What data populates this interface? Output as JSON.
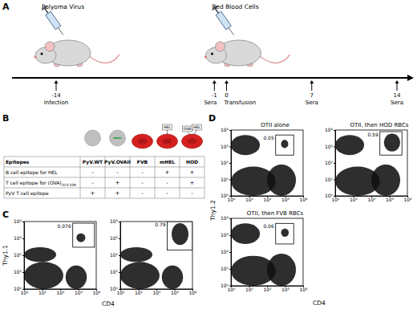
{
  "panel_labels": [
    "A",
    "B",
    "C",
    "D"
  ],
  "panel_a": {
    "injections": [
      "Polyoma Virus",
      "Red Blood Cells"
    ],
    "timeline": [
      {
        "day": -14,
        "label": "Infection"
      },
      {
        "day": -1,
        "label": "Sera"
      },
      {
        "day": 0,
        "label": "Transfusion"
      },
      {
        "day": 7,
        "label": "Sera"
      },
      {
        "day": 14,
        "label": "Sera"
      }
    ]
  },
  "panel_b": {
    "header": [
      "Epitopes",
      "PyV.WT",
      "PyV.OVAII",
      "FVB",
      "mHEL",
      "HOD"
    ],
    "tags": [
      [],
      [],
      [],
      [
        "HEL"
      ],
      [
        "OVA",
        "HEL"
      ]
    ],
    "rows": [
      {
        "label": "B cell epitope for HEL",
        "cells": [
          "-",
          "-",
          "-",
          "+",
          "+"
        ]
      },
      {
        "label": "T cell epitope for (OVA)",
        "sub": "323-339",
        "cells": [
          "-",
          "+",
          "-",
          "-",
          "+"
        ]
      },
      {
        "label": "PyV T cell epitope",
        "cells": [
          "+",
          "+",
          "-",
          "-",
          "-"
        ]
      }
    ]
  },
  "panel_c": {
    "x_label": "CD4",
    "y_label": "Thy1.1"
  },
  "panel_d": {
    "x_label": "CD4",
    "y_label": "Thy1.2"
  },
  "chart_data": [
    {
      "type": "scatter",
      "log": true,
      "xlim": [
        1,
        10000
      ],
      "ylim": [
        1,
        10000
      ],
      "xticks": [
        {
          "value": 1,
          "label": "10⁰"
        },
        {
          "value": 10,
          "label": "10¹"
        },
        {
          "value": 100,
          "label": "10²"
        },
        {
          "value": 1000,
          "label": "10³"
        },
        {
          "value": 10000,
          "label": "10⁴"
        }
      ],
      "yticks": [
        {
          "value": 1,
          "label": "10⁰"
        },
        {
          "value": 10,
          "label": "10¹"
        },
        {
          "value": 100,
          "label": "10²"
        },
        {
          "value": 1000,
          "label": "10³"
        },
        {
          "value": 10000,
          "label": "10⁴"
        }
      ],
      "populations": [
        {
          "x": [
            1,
            150
          ],
          "y": [
            1,
            40
          ]
        },
        {
          "x": [
            200,
            3000
          ],
          "y": [
            1,
            25
          ]
        },
        {
          "x": [
            1,
            60
          ],
          "y": [
            40,
            300
          ]
        },
        {
          "x": [
            800,
            2500
          ],
          "y": [
            600,
            2000
          ]
        }
      ],
      "gate": {
        "x": [
          500,
          8000
        ],
        "y": [
          300,
          8000
        ],
        "percent": 0.076
      }
    },
    {
      "type": "scatter",
      "log": true,
      "xlim": [
        1,
        10000
      ],
      "ylim": [
        1,
        10000
      ],
      "xticks": [
        {
          "value": 1,
          "label": "10⁰"
        },
        {
          "value": 10,
          "label": "10¹"
        },
        {
          "value": 100,
          "label": "10²"
        },
        {
          "value": 1000,
          "label": "10³"
        },
        {
          "value": 10000,
          "label": "10⁴"
        }
      ],
      "yticks": [
        {
          "value": 1,
          "label": "10⁰"
        },
        {
          "value": 10,
          "label": "10¹"
        },
        {
          "value": 100,
          "label": "10²"
        },
        {
          "value": 1000,
          "label": "10³"
        },
        {
          "value": 10000,
          "label": "10⁴"
        }
      ],
      "populations": [
        {
          "x": [
            1,
            150
          ],
          "y": [
            1,
            40
          ]
        },
        {
          "x": [
            200,
            3000
          ],
          "y": [
            1,
            25
          ]
        },
        {
          "x": [
            1,
            60
          ],
          "y": [
            40,
            300
          ]
        },
        {
          "x": [
            700,
            6000
          ],
          "y": [
            400,
            8000
          ]
        }
      ],
      "gate": {
        "x": [
          400,
          10000
        ],
        "y": [
          200,
          10000
        ],
        "percent": 0.79
      }
    },
    {
      "type": "scatter",
      "log": true,
      "title": "OTII alone",
      "xlim": [
        1,
        10000
      ],
      "ylim": [
        1,
        10000
      ],
      "xticks": [
        {
          "value": 1,
          "label": "10⁰"
        },
        {
          "value": 10,
          "label": "10¹"
        },
        {
          "value": 100,
          "label": "10²"
        },
        {
          "value": 1000,
          "label": "10³"
        },
        {
          "value": 10000,
          "label": "10⁴"
        }
      ],
      "yticks": [
        {
          "value": 1,
          "label": "10⁰"
        },
        {
          "value": 10,
          "label": "10¹"
        },
        {
          "value": 100,
          "label": "10²"
        },
        {
          "value": 1000,
          "label": "10³"
        },
        {
          "value": 10000,
          "label": "10⁴"
        }
      ],
      "populations": [
        {
          "x": [
            1,
            40
          ],
          "y": [
            300,
            5000
          ]
        },
        {
          "x": [
            1,
            300
          ],
          "y": [
            1,
            60
          ]
        },
        {
          "x": [
            100,
            4000
          ],
          "y": [
            1,
            80
          ]
        },
        {
          "x": [
            600,
            1500
          ],
          "y": [
            800,
            2500
          ]
        }
      ],
      "gate": {
        "x": [
          300,
          3000
        ],
        "y": [
          300,
          5000
        ],
        "percent": 0.05
      }
    },
    {
      "type": "scatter",
      "log": true,
      "title": "OTII, then HOD RBCs",
      "xlim": [
        1,
        10000
      ],
      "ylim": [
        1,
        10000
      ],
      "xticks": [
        {
          "value": 1,
          "label": "10⁰"
        },
        {
          "value": 10,
          "label": "10¹"
        },
        {
          "value": 100,
          "label": "10²"
        },
        {
          "value": 1000,
          "label": "10³"
        },
        {
          "value": 10000,
          "label": "10⁴"
        }
      ],
      "yticks": [
        {
          "value": 1,
          "label": "10⁰"
        },
        {
          "value": 10,
          "label": "10¹"
        },
        {
          "value": 100,
          "label": "10²"
        },
        {
          "value": 1000,
          "label": "10³"
        },
        {
          "value": 10000,
          "label": "10⁴"
        }
      ],
      "populations": [
        {
          "x": [
            1,
            40
          ],
          "y": [
            300,
            5000
          ]
        },
        {
          "x": [
            1,
            300
          ],
          "y": [
            1,
            60
          ]
        },
        {
          "x": [
            100,
            4000
          ],
          "y": [
            1,
            80
          ]
        },
        {
          "x": [
            500,
            4000
          ],
          "y": [
            500,
            6000
          ]
        }
      ],
      "gate": {
        "x": [
          300,
          5000
        ],
        "y": [
          300,
          8000
        ],
        "percent": 0.59
      }
    },
    {
      "type": "scatter",
      "log": true,
      "title": "OTII, then FVB RBCs",
      "xlim": [
        1,
        10000
      ],
      "ylim": [
        1,
        10000
      ],
      "xticks": [
        {
          "value": 1,
          "label": "10⁰"
        },
        {
          "value": 10,
          "label": "10¹"
        },
        {
          "value": 100,
          "label": "10²"
        },
        {
          "value": 1000,
          "label": "10³"
        },
        {
          "value": 10000,
          "label": "10⁴"
        }
      ],
      "yticks": [
        {
          "value": 1,
          "label": "10⁰"
        },
        {
          "value": 10,
          "label": "10¹"
        },
        {
          "value": 100,
          "label": "10²"
        },
        {
          "value": 1000,
          "label": "10³"
        },
        {
          "value": 10000,
          "label": "10⁴"
        }
      ],
      "populations": [
        {
          "x": [
            1,
            40
          ],
          "y": [
            300,
            5000
          ]
        },
        {
          "x": [
            1,
            300
          ],
          "y": [
            1,
            60
          ]
        },
        {
          "x": [
            100,
            4000
          ],
          "y": [
            1,
            80
          ]
        },
        {
          "x": [
            600,
            1600
          ],
          "y": [
            800,
            2500
          ]
        }
      ],
      "gate": {
        "x": [
          300,
          3000
        ],
        "y": [
          300,
          5000
        ],
        "percent": 0.06
      }
    }
  ]
}
